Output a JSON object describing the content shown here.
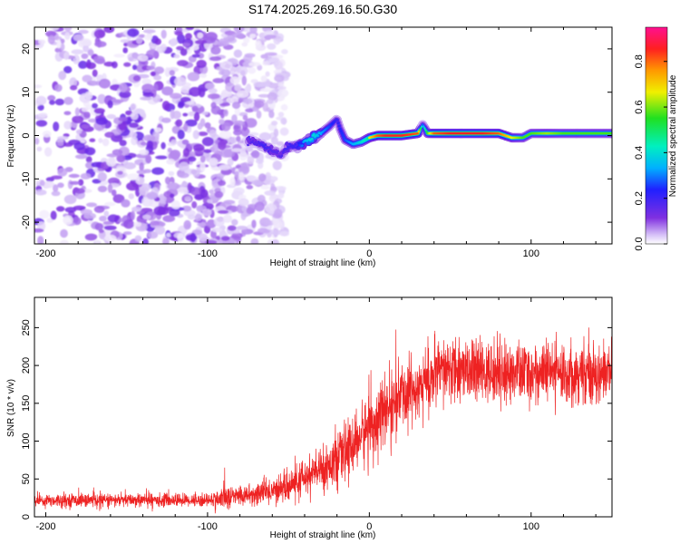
{
  "title": "S174.2025.269.16.50.G30",
  "chart_data": [
    {
      "type": "heatmap",
      "name": "spectrogram",
      "xlabel": "Height of straight line (km)",
      "ylabel": "Frequency (Hz)",
      "xlim": [
        -207,
        150
      ],
      "ylim": [
        -25,
        25
      ],
      "xticks": [
        -200,
        -100,
        0,
        100
      ],
      "yticks": [
        -20,
        -10,
        0,
        10,
        20
      ],
      "colorbar": {
        "label": "Normalized spectral amplitude",
        "range": [
          0,
          0.95
        ],
        "ticks": [
          0,
          0.2,
          0.4,
          0.6,
          0.8
        ],
        "tick_labels": [
          "0.0",
          "0.2",
          "0.4",
          "0.6",
          "0.8"
        ]
      },
      "noise_region_x": [
        -207,
        -52
      ],
      "ridge": {
        "x": [
          -75,
          -70,
          -65,
          -60,
          -55,
          -50,
          -45,
          -40,
          -35,
          -30,
          -25,
          -20,
          -18,
          -15,
          -10,
          -5,
          0,
          5,
          10,
          20,
          30,
          33,
          36,
          40,
          50,
          60,
          70,
          80,
          88,
          95,
          100,
          110,
          120,
          130,
          140,
          150
        ],
        "freq": [
          -1.0,
          -1.5,
          -2.5,
          -3.5,
          -4.5,
          -2.5,
          -2.5,
          -1.5,
          -0.5,
          0.5,
          2.0,
          3.8,
          1.5,
          -1.0,
          -2.0,
          -1.5,
          -0.5,
          0.0,
          0.0,
          0.0,
          0.5,
          2.5,
          0.5,
          0.5,
          0.5,
          0.5,
          0.5,
          0.5,
          -0.5,
          -0.5,
          0.5,
          0.5,
          0.5,
          0.5,
          0.5,
          0.5
        ],
        "amplitude": [
          0.25,
          0.25,
          0.3,
          0.25,
          0.25,
          0.3,
          0.3,
          0.5,
          0.6,
          0.5,
          0.4,
          0.3,
          0.35,
          0.4,
          0.5,
          0.6,
          0.7,
          0.85,
          0.9,
          0.9,
          0.85,
          0.3,
          0.6,
          0.85,
          0.9,
          0.9,
          0.9,
          0.85,
          0.7,
          0.6,
          0.6,
          0.65,
          0.6,
          0.6,
          0.6,
          0.6
        ]
      }
    },
    {
      "type": "line",
      "name": "snr",
      "xlabel": "Height of straight line (km)",
      "ylabel": "SNR (10 * v/v)",
      "xlim": [
        -207,
        150
      ],
      "ylim": [
        0,
        290
      ],
      "xticks": [
        -200,
        -100,
        0,
        100
      ],
      "yticks": [
        0,
        50,
        100,
        150,
        200,
        250
      ],
      "color": "#ee2222",
      "trend": {
        "x": [
          -207,
          -150,
          -100,
          -90,
          -80,
          -70,
          -60,
          -50,
          -40,
          -30,
          -20,
          -10,
          0,
          10,
          20,
          30,
          40,
          50,
          60,
          70,
          80,
          90,
          100,
          110,
          120,
          130,
          140,
          150
        ],
        "mean": [
          22,
          22,
          22,
          25,
          28,
          30,
          35,
          40,
          52,
          62,
          75,
          95,
          120,
          140,
          160,
          175,
          185,
          195,
          195,
          190,
          190,
          190,
          190,
          190,
          190,
          190,
          190,
          190
        ],
        "spread": [
          8,
          8,
          8,
          14,
          12,
          14,
          16,
          18,
          22,
          26,
          30,
          34,
          40,
          40,
          40,
          40,
          40,
          40,
          38,
          36,
          36,
          36,
          36,
          36,
          36,
          36,
          36,
          36
        ]
      }
    }
  ]
}
